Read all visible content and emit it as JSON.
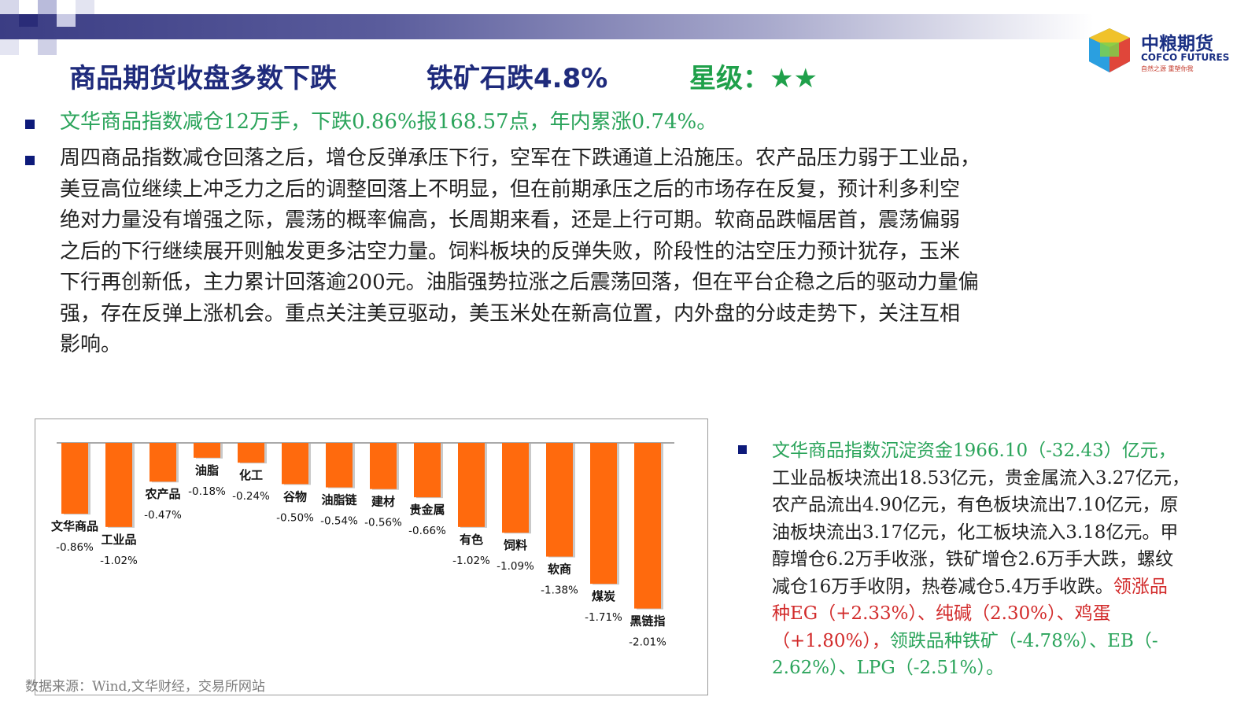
{
  "header": {
    "title_main": "商品期货收盘多数下跌",
    "title_sub": "铁矿石跌4.8%",
    "title_rating": "星级：★★"
  },
  "logo": {
    "name": "中粮期货",
    "english": "COFCO FUTURES",
    "slogan": "自然之源  重塑你我"
  },
  "colors": {
    "header_blue": "#1f2b7c",
    "accent_green": "#2ba45b",
    "bar_orange": "#ff6a0d",
    "accent_red": "#d22b2b",
    "bullet": "#0d1a7a"
  },
  "bullets": {
    "b1": "文华商品指数减仓12万手，下跌0.86%报168.57点，年内累涨0.74%。",
    "b2_lines": [
      "周四商品指数减仓回落之后，增仓反弹承压下行，空军在下跌通道上沿施压。农产品压力弱于工业品，",
      "美豆高位继续上冲乏力之后的调整回落上不明显，但在前期承压之后的市场存在反复，预计利多利空",
      "绝对力量没有增强之际，震荡的概率偏高，长周期来看，还是上行可期。软商品跌幅居首，震荡偏弱",
      "之后的下行继续展开则触发更多沽空力量。饲料板块的反弹失败，阶段性的沽空压力预计犹存，玉米",
      "下行再创新低，主力累计回落逾200元。油脂强势拉涨之后震荡回落，但在平台企稳之后的驱动力量偏",
      "强，存在反弹上涨机会。重点关注美豆驱动，美玉米处在新高位置，内外盘的分歧走势下，关注互相",
      "影响。"
    ]
  },
  "right_panel": {
    "l1": "文华商品指数沉淀资金1966.10（-32.43）亿元，",
    "l2": "工业品板块流出18.53亿元，贵金属流入3.27亿元，",
    "l3": "农产品流出4.90亿元，有色板块流出7.10亿元，原",
    "l4": "油板块流出3.17亿元，化工板块流入3.18亿元。甲",
    "l5": "醇增仓6.2万手收涨，铁矿增仓2.6万手大跌，螺纹",
    "l6": "减仓16万手收阴，热卷减仓5.4万手收跌。",
    "l6_red": "领涨品",
    "l7_red": "种EG（+2.33%）、纯碱（2.30%）、鸡蛋",
    "l8_red": "（+1.80%），",
    "l8_green": "领跌品种铁矿（-4.78%）、EB（-",
    "l9_green": "2.62%）、LPG（-2.51%）。"
  },
  "source": "数据来源：Wind,文华财经，交易所网站",
  "chart_data": {
    "type": "bar",
    "categories": [
      "文华商品",
      "工业品",
      "农产品",
      "油脂",
      "化工",
      "谷物",
      "油脂链",
      "建材",
      "贵金属",
      "有色",
      "饲料",
      "软商",
      "煤炭",
      "黑链指"
    ],
    "values": [
      -0.86,
      -1.02,
      -0.47,
      -0.18,
      -0.24,
      -0.5,
      -0.54,
      -0.56,
      -0.66,
      -1.02,
      -1.09,
      -1.38,
      -1.71,
      -2.01
    ],
    "value_labels": [
      "-0.86%",
      "-1.02%",
      "-0.47%",
      "-0.18%",
      "-0.24%",
      "-0.50%",
      "-0.54%",
      "-0.56%",
      "-0.66%",
      "-1.02%",
      "-1.09%",
      "-1.38%",
      "-1.71%",
      "-2.01%"
    ],
    "unit": "%",
    "ylim": [
      -2.1,
      0
    ],
    "grid": false,
    "legend": "none"
  }
}
